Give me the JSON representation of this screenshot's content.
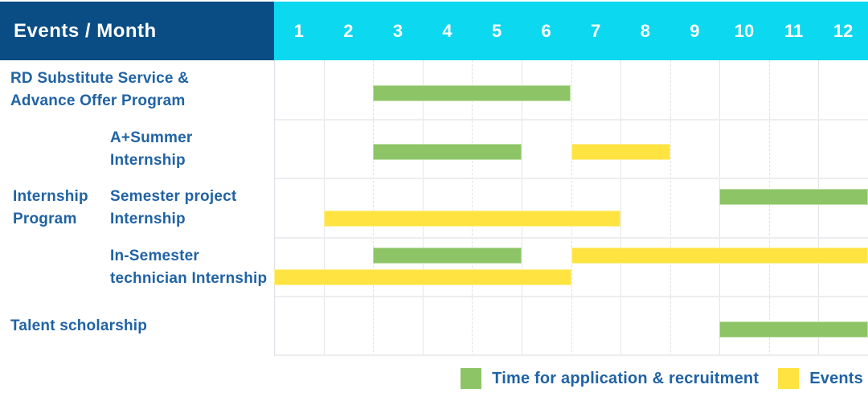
{
  "palette": {
    "header_bg": "#0a4d84",
    "months_bg": "#0cd8ef",
    "text_blue": "#2063a5",
    "green": "#8dc566",
    "yellow": "#ffe341"
  },
  "header": {
    "title": "Events / Month",
    "months": [
      "1",
      "2",
      "3",
      "4",
      "5",
      "6",
      "7",
      "8",
      "9",
      "10",
      "11",
      "12"
    ]
  },
  "group_label": {
    "lines": [
      "Internship",
      "Program"
    ]
  },
  "rows": [
    {
      "label_lines": [
        "RD Substitute Service &",
        "Advance Offer Program"
      ]
    },
    {
      "label_lines": [
        "A+Summer",
        "Internship"
      ]
    },
    {
      "label_lines": [
        "Semester project",
        "Internship"
      ]
    },
    {
      "label_lines": [
        "In-Semester",
        "technician Internship"
      ]
    },
    {
      "label_lines": [
        "Talent scholarship"
      ]
    }
  ],
  "legend": [
    {
      "label": "Time for application & recruitment",
      "color_key": "green"
    },
    {
      "label": "Events",
      "color_key": "yellow"
    }
  ],
  "chart_data": {
    "type": "bar",
    "subtype": "gantt-schedule",
    "title": "Events / Month",
    "x_categories": [
      1,
      2,
      3,
      4,
      5,
      6,
      7,
      8,
      9,
      10,
      11,
      12
    ],
    "x_range": [
      1,
      12
    ],
    "grid": true,
    "legend_position": "bottom-right",
    "row_labels": [
      "RD Substitute Service & Advance Offer Program",
      "Internship Program / A+Summer Internship",
      "Internship Program / Semester project Internship",
      "Internship Program / In-Semester technician Internship",
      "Talent scholarship"
    ],
    "series_legend": {
      "green": "Time for application & recruitment",
      "yellow": "Events"
    },
    "bars": [
      {
        "row": 0,
        "color_key": "green",
        "start_month": 3,
        "end_month": 6,
        "lane": "single"
      },
      {
        "row": 1,
        "color_key": "green",
        "start_month": 3,
        "end_month": 5,
        "lane": "single"
      },
      {
        "row": 1,
        "color_key": "yellow",
        "start_month": 7,
        "end_month": 8,
        "lane": "single"
      },
      {
        "row": 2,
        "color_key": "green",
        "start_month": 10,
        "end_month": 12,
        "lane": "top"
      },
      {
        "row": 2,
        "color_key": "yellow",
        "start_month": 2,
        "end_month": 7,
        "lane": "bottom"
      },
      {
        "row": 3,
        "color_key": "green",
        "start_month": 3,
        "end_month": 5,
        "lane": "top"
      },
      {
        "row": 3,
        "color_key": "yellow",
        "start_month": 7,
        "end_month": 12,
        "lane": "top"
      },
      {
        "row": 3,
        "color_key": "yellow",
        "start_month": 1,
        "end_month": 6,
        "lane": "bottom"
      },
      {
        "row": 4,
        "color_key": "green",
        "start_month": 10,
        "end_month": 12,
        "lane": "single"
      }
    ]
  }
}
